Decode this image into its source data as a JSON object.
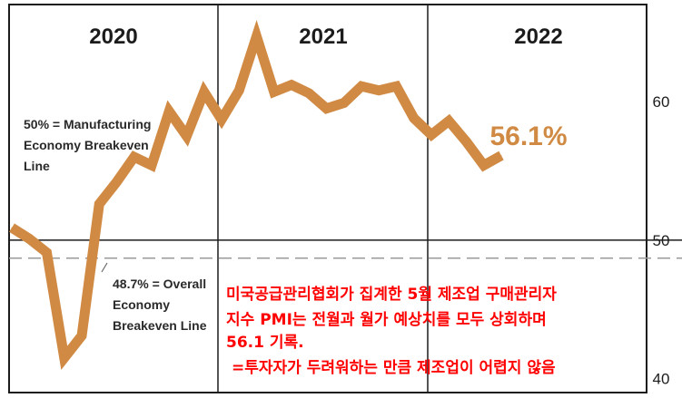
{
  "chart_data": {
    "type": "line",
    "periods": [
      "2020",
      "2021",
      "2022"
    ],
    "y_ticks": [
      "40",
      "50",
      "60"
    ],
    "ylim": [
      39,
      67
    ],
    "reference_lines": [
      {
        "value": 50,
        "label": [
          "50% = Manufacturing",
          "Economy Breakeven",
          "Line"
        ],
        "style": "solid"
      },
      {
        "value": 48.7,
        "label": [
          "48.7% = Overall",
          "Economy",
          "Breakeven Line"
        ],
        "style": "dashed"
      }
    ],
    "series": [
      {
        "color": "#d08a43",
        "points": [
          [
            "2020-01",
            50.9
          ],
          [
            "2020-02",
            50.1
          ],
          [
            "2020-03",
            49.1
          ],
          [
            "2020-04",
            41.5
          ],
          [
            "2020-05",
            43.1
          ],
          [
            "2020-06",
            52.6
          ],
          [
            "2020-07",
            54.2
          ],
          [
            "2020-08",
            56.0
          ],
          [
            "2020-09",
            55.4
          ],
          [
            "2020-10",
            59.3
          ],
          [
            "2020-11",
            57.5
          ],
          [
            "2020-12",
            60.7
          ],
          [
            "2021-01",
            58.7
          ],
          [
            "2021-02",
            60.8
          ],
          [
            "2021-03",
            64.7
          ],
          [
            "2021-04",
            60.7
          ],
          [
            "2021-05",
            61.2
          ],
          [
            "2021-06",
            60.6
          ],
          [
            "2021-07",
            59.5
          ],
          [
            "2021-08",
            59.9
          ],
          [
            "2021-09",
            61.1
          ],
          [
            "2021-10",
            60.8
          ],
          [
            "2021-11",
            61.1
          ],
          [
            "2021-12",
            58.8
          ],
          [
            "2022-01",
            57.6
          ],
          [
            "2022-02",
            58.6
          ],
          [
            "2022-03",
            57.1
          ],
          [
            "2022-04",
            55.4
          ],
          [
            "2022-05",
            56.1
          ]
        ]
      }
    ],
    "callout": "56.1%"
  },
  "caption": [
    "미국공급관리협회가 집계한 5월 제조업 구매관리자",
    "지수 PMI는 전월과 월가 예상치를 모두 상회하며",
    "56.1 기록.",
    "=투자자가 두려워하는 만큼 제조업이 어렵지 않음"
  ],
  "colors": {
    "line": "#d08a43",
    "caption": "#ff0000",
    "axis": "#1c1c1c",
    "dashed": "#9a9a9a"
  }
}
